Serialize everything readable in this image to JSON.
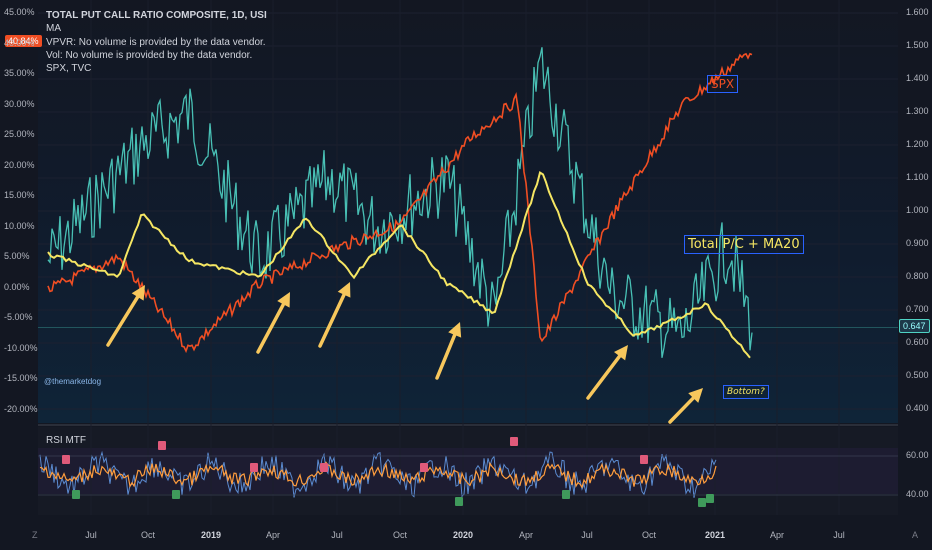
{
  "legend": {
    "title": "TOTAL PUT CALL RATIO COMPOSITE, 1D, USI",
    "lines": [
      "MA",
      "VPVR: No volume is provided by the data vendor.",
      "Vol: No volume is provided by the data vendor.",
      "SPX, TVC"
    ]
  },
  "left_axis": {
    "labels": [
      "45.00%",
      "40.00%",
      "35.00%",
      "30.00%",
      "25.00%",
      "20.00%",
      "15.00%",
      "10.00%",
      "5.00%",
      "0.00%",
      "-5.00%",
      "-10.00%",
      "-15.00%",
      "-20.00%"
    ],
    "current_badge": "40.84%"
  },
  "right_axis": {
    "labels": [
      "1.600",
      "1.500",
      "1.400",
      "1.300",
      "1.200",
      "1.100",
      "1.000",
      "0.900",
      "0.800",
      "0.700",
      "0.600",
      "0.500",
      "0.400"
    ],
    "current_badge": "0.647"
  },
  "rsi_axis": {
    "labels": [
      "60.00",
      "40.00"
    ]
  },
  "time_axis": {
    "labels": [
      "Jul",
      "Oct",
      "2019",
      "Apr",
      "Jul",
      "Oct",
      "2020",
      "Apr",
      "Jul",
      "Oct",
      "2021",
      "Apr",
      "Jul"
    ],
    "bold": [
      "2019",
      "2020",
      "2021"
    ]
  },
  "annotations": {
    "spx": "SPX",
    "pc": "Total P/C + MA20",
    "bottom": "Bottom?",
    "watermark": "@themarketdog"
  },
  "rsi_panel": {
    "title": "RSI MTF"
  },
  "corner_buttons": {
    "left": "Z",
    "right": "A"
  },
  "colors": {
    "pc": "#4fd3c4",
    "ma": "#f5e663",
    "spx": "#f04e23",
    "arrow": "#f7c75c",
    "rsi": "#5b8bd0",
    "rsi_ma": "#ff9d3d",
    "accent": "#2962ff"
  },
  "chart_data": {
    "type": "line",
    "title": "TOTAL PUT CALL RATIO COMPOSITE, 1D, USI",
    "x_range": [
      "2018-06",
      "2021-06"
    ],
    "y_right_range": [
      0.4,
      1.6
    ],
    "y_left_range": [
      "-20.00%",
      "45.00%"
    ],
    "series": [
      {
        "name": "SPX",
        "x": [
          "2018-06",
          "2018-09",
          "2018-12",
          "2019-03",
          "2019-06",
          "2019-09",
          "2019-12",
          "2020-02",
          "2020-03",
          "2020-06",
          "2020-09",
          "2020-12"
        ],
        "values": [
          0.76,
          0.86,
          0.58,
          0.78,
          0.88,
          0.96,
          1.22,
          1.34,
          0.6,
          0.98,
          1.32,
          1.49
        ]
      },
      {
        "name": "MA",
        "x": [
          "2018-06",
          "2018-09",
          "2018-10",
          "2018-12",
          "2019-03",
          "2019-05",
          "2019-07",
          "2019-09",
          "2019-11",
          "2020-01",
          "2020-03",
          "2020-05",
          "2020-07",
          "2020-09",
          "2020-10",
          "2020-12"
        ],
        "values": [
          0.87,
          0.8,
          0.99,
          0.85,
          0.8,
          0.98,
          0.8,
          0.96,
          0.78,
          0.69,
          1.12,
          0.78,
          0.62,
          0.68,
          0.72,
          0.55
        ]
      },
      {
        "name": "Total P/C",
        "x": [
          "2018-06",
          "2018-10",
          "2018-12",
          "2019-03",
          "2019-06",
          "2019-08",
          "2019-11",
          "2020-01",
          "2020-03",
          "2020-06",
          "2020-09",
          "2020-11",
          "2020-12"
        ],
        "values": [
          0.85,
          1.2,
          1.3,
          0.85,
          1.1,
          0.95,
          1.1,
          0.68,
          1.45,
          0.75,
          0.62,
          0.9,
          0.65
        ]
      }
    ]
  }
}
